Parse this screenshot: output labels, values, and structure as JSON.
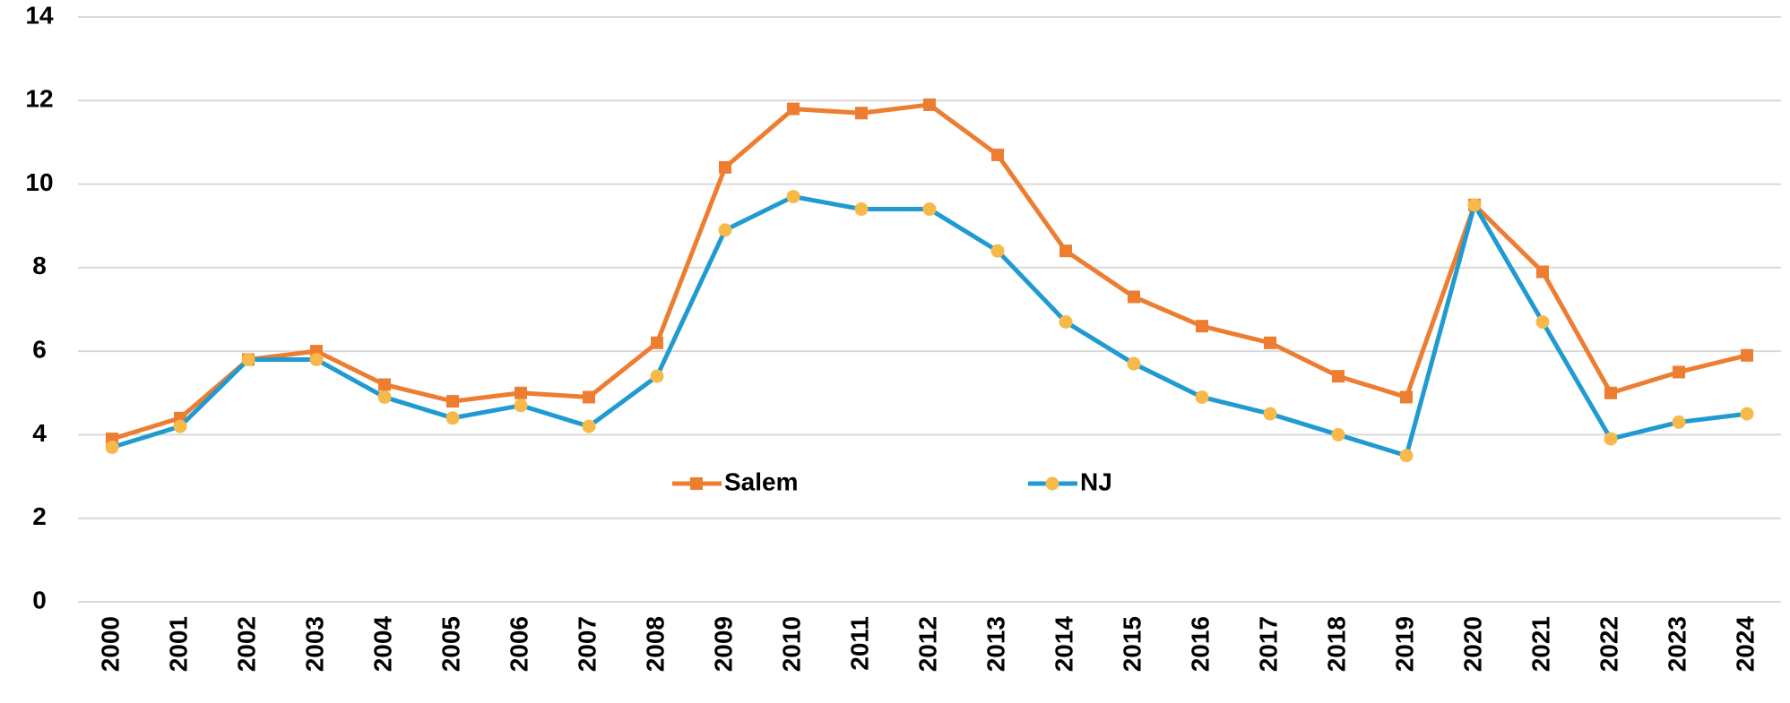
{
  "chart_data": {
    "type": "line",
    "categories": [
      "2000",
      "2001",
      "2002",
      "2003",
      "2004",
      "2005",
      "2006",
      "2007",
      "2008",
      "2009",
      "2010",
      "2011",
      "2012",
      "2013",
      "2014",
      "2015",
      "2016",
      "2017",
      "2018",
      "2019",
      "2020",
      "2021",
      "2022",
      "2023",
      "2024"
    ],
    "series": [
      {
        "name": "Salem",
        "color": "#ed7d31",
        "marker": "square",
        "marker_color": "#ed7d31",
        "values": [
          3.9,
          4.4,
          5.8,
          6.0,
          5.2,
          4.8,
          5.0,
          4.9,
          6.2,
          10.4,
          11.8,
          11.7,
          11.9,
          10.7,
          8.4,
          7.3,
          6.6,
          6.2,
          5.4,
          4.9,
          9.5,
          7.9,
          5.0,
          5.5,
          5.9
        ]
      },
      {
        "name": "NJ",
        "color": "#1f9bd1",
        "marker": "circle",
        "marker_color": "#f7b94a",
        "values": [
          3.7,
          4.2,
          5.8,
          5.8,
          4.9,
          4.4,
          4.7,
          4.2,
          5.4,
          8.9,
          9.7,
          9.4,
          9.4,
          8.4,
          6.7,
          5.7,
          4.9,
          4.5,
          4.0,
          3.5,
          9.5,
          6.7,
          3.9,
          4.3,
          4.5
        ]
      }
    ],
    "ylim": [
      0,
      14
    ],
    "yticks": [
      0,
      2,
      4,
      6,
      8,
      10,
      12,
      14
    ],
    "grid": true,
    "legend": "center"
  }
}
